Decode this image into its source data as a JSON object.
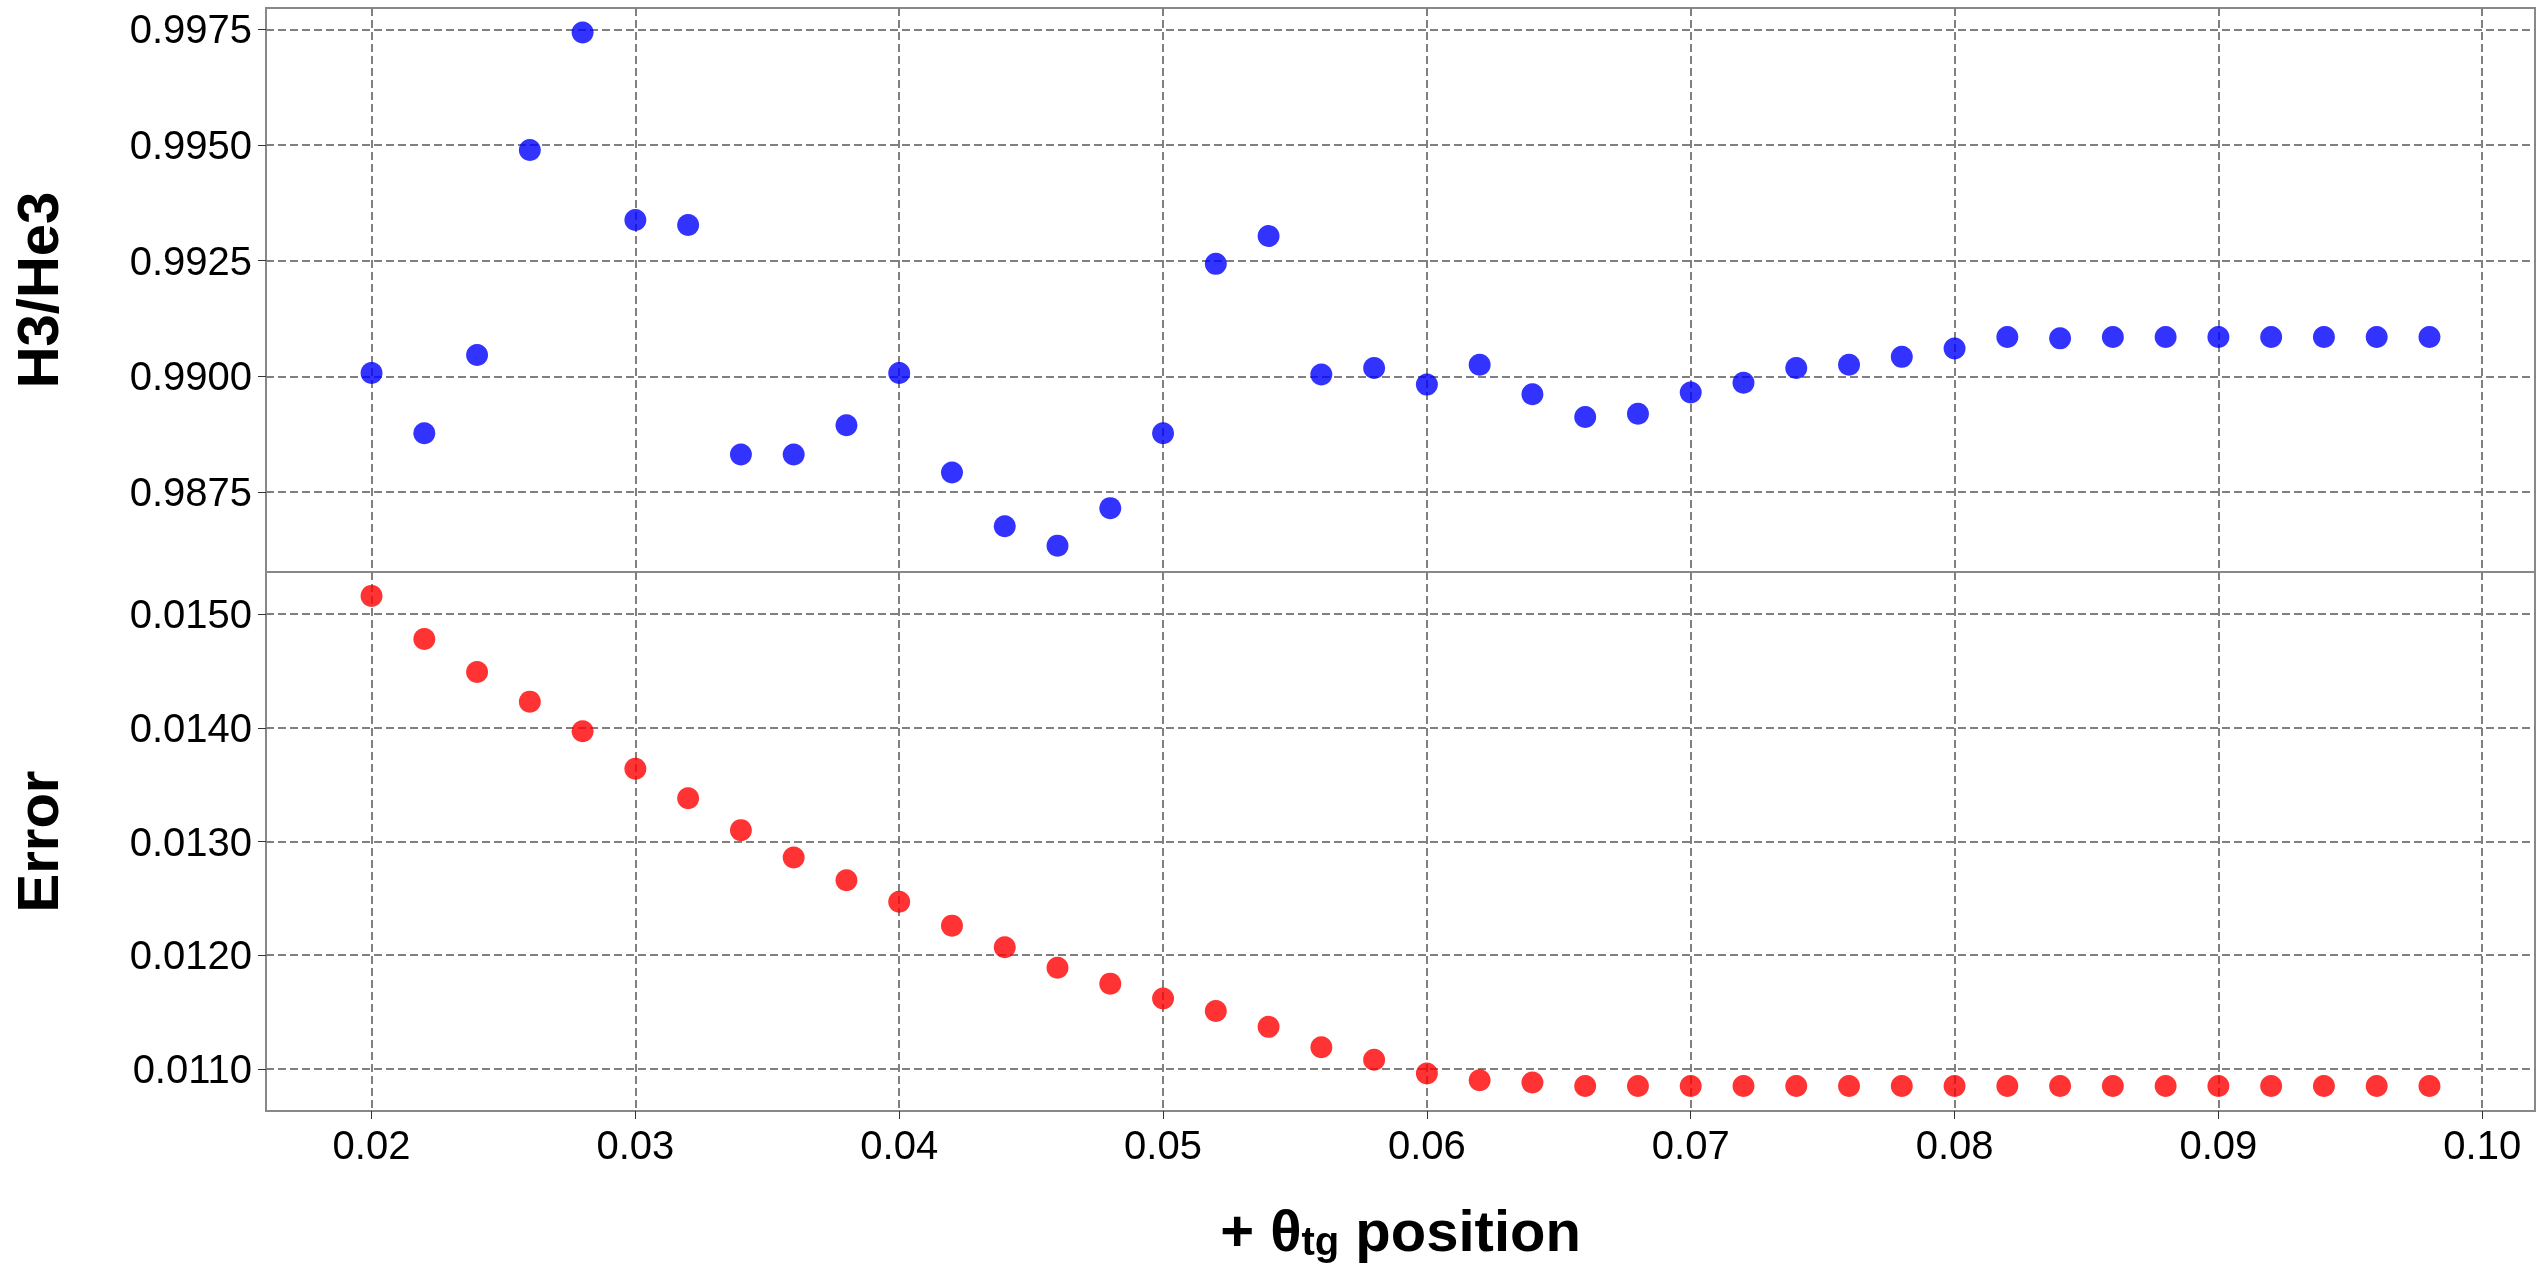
{
  "chart_data": [
    {
      "type": "scatter",
      "ylabel": "H3/He3",
      "marker": "circle",
      "grid": true,
      "tick_labels": "y",
      "x": [
        0.02,
        0.022,
        0.024,
        0.026,
        0.028,
        0.03,
        0.032,
        0.034,
        0.036,
        0.038,
        0.04,
        0.042,
        0.044,
        0.046,
        0.048,
        0.05,
        0.052,
        0.054,
        0.056,
        0.058,
        0.06,
        0.062,
        0.064,
        0.066,
        0.068,
        0.07,
        0.072,
        0.074,
        0.076,
        0.078,
        0.08,
        0.082,
        0.084,
        0.086,
        0.088,
        0.09,
        0.092,
        0.094,
        0.096,
        0.098
      ],
      "series": [
        {
          "color": "#0000ff",
          "values": [
            0.99007,
            0.98877,
            0.99046,
            0.99489,
            0.99743,
            0.99338,
            0.99327,
            0.98831,
            0.98831,
            0.98894,
            0.99007,
            0.98792,
            0.98676,
            0.98634,
            0.98715,
            0.98877,
            0.99243,
            0.99303,
            0.99004,
            0.99018,
            0.98982,
            0.99025,
            0.98961,
            0.98912,
            0.98919,
            0.98965,
            0.98986,
            0.99018,
            0.99025,
            0.99042,
            0.9906,
            0.99085,
            0.99082,
            0.99085,
            0.99085,
            0.99085,
            0.99085,
            0.99085,
            0.99085,
            0.99085
          ]
        }
      ],
      "xlim": [
        0.016,
        0.102
      ],
      "xticks": [
        0.02,
        0.03,
        0.04,
        0.05,
        0.06,
        0.07,
        0.08,
        0.09,
        0.1
      ],
      "ylim": [
        0.98577,
        0.99796
      ],
      "yticks": [
        0.9875,
        {
          "value": 0.99,
          "label": "0.9900"
        },
        0.9925,
        {
          "value": 0.995,
          "label": "0.9950"
        },
        0.9975
      ]
    },
    {
      "type": "scatter",
      "ylabel": "Error",
      "xlabel": "+ θ$_{tg}$ position",
      "marker": "circle",
      "grid": true,
      "x": [
        0.02,
        0.022,
        0.024,
        0.026,
        0.028,
        0.03,
        0.032,
        0.034,
        0.036,
        0.038,
        0.04,
        0.042,
        0.044,
        0.046,
        0.048,
        0.05,
        0.052,
        0.054,
        0.056,
        0.058,
        0.06,
        0.062,
        0.064,
        0.066,
        0.068,
        0.07,
        0.072,
        0.074,
        0.076,
        0.078,
        0.08,
        0.082,
        0.084,
        0.086,
        0.088,
        0.09,
        0.092,
        0.094,
        0.096,
        0.098
      ],
      "series": [
        {
          "color": "#ff0000",
          "values": [
            0.01516,
            0.01478,
            0.01449,
            0.01423,
            0.01397,
            0.01364,
            0.01338,
            0.0131,
            0.01286,
            0.01266,
            0.01247,
            0.01226,
            0.01207,
            0.01189,
            0.01175,
            0.01162,
            0.01151,
            0.01137,
            0.01119,
            0.01108,
            0.01096,
            0.0109,
            0.01088,
            0.01085,
            0.01085,
            0.01085,
            0.01085,
            0.01085,
            0.01085,
            0.01085,
            0.01085,
            0.01085,
            0.01085,
            0.01085,
            0.01085,
            0.01085,
            0.01085,
            0.01085,
            0.01085,
            0.01085
          ]
        }
      ],
      "xlim": [
        0.016,
        0.102
      ],
      "xticks": [
        0.02,
        0.03,
        0.04,
        0.05,
        0.06,
        0.07,
        0.08,
        0.09,
        {
          "value": 0.1,
          "label": "0.10"
        }
      ],
      "ylim": [
        0.01063,
        0.01537
      ],
      "yticks": [
        {
          "value": 0.011,
          "label": "0.0110"
        },
        {
          "value": 0.012,
          "label": "0.0120"
        },
        {
          "value": 0.013,
          "label": "0.0130"
        },
        {
          "value": 0.014,
          "label": "0.0140"
        },
        {
          "value": 0.015,
          "label": "0.0150"
        }
      ]
    }
  ]
}
